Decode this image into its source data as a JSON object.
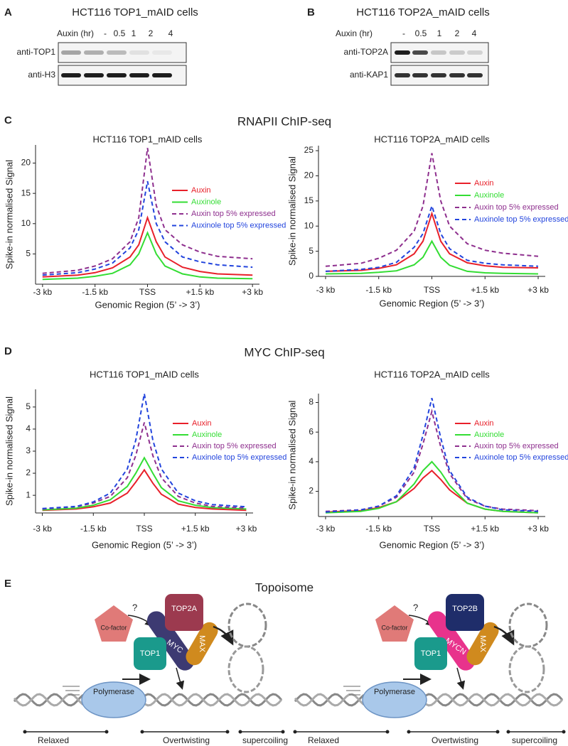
{
  "panels": {
    "A": {
      "label": "A",
      "title": "HCT116 TOP1_mAID cells",
      "treatment": "Auxin (hr)",
      "lanes": [
        "-",
        "0.5",
        "1",
        "2",
        "4"
      ],
      "antibodies": [
        "anti-TOP1",
        "anti-H3"
      ]
    },
    "B": {
      "label": "B",
      "title": "HCT116 TOP2A_mAID cells",
      "treatment": "Auxin (hr)",
      "lanes": [
        "-",
        "0.5",
        "1",
        "2",
        "4"
      ],
      "antibodies": [
        "anti-TOP2A",
        "anti-KAP1"
      ]
    },
    "C": {
      "label": "C",
      "title": "RNAPII ChIP-seq"
    },
    "D": {
      "label": "D",
      "title": "MYC ChIP-seq"
    },
    "E": {
      "label": "E",
      "title": "Topoisome",
      "left": {
        "cofactor": "Co-factor",
        "question": "?",
        "top2": "TOP2A",
        "myc": "MYC",
        "max": "MAX",
        "top1": "TOP1",
        "polymerase": "Polymerase",
        "regions": [
          "Relaxed",
          "Overtwisting",
          "supercoiling"
        ]
      },
      "right": {
        "cofactor": "Co-factor",
        "question": "?",
        "top2": "TOP2B",
        "myc": "MYCN",
        "max": "MAX",
        "top1": "TOP1",
        "polymerase": "Polymerase",
        "regions": [
          "Relaxed",
          "Overtwisting",
          "supercoiling"
        ]
      }
    }
  },
  "chart_data": [
    {
      "type": "line",
      "title": "HCT116 TOP1_mAID cells",
      "x_label": "Genomic Region (5’ -> 3’)",
      "y_label": "Spike-in normalised Signal",
      "x": [
        -3,
        -2,
        -1.5,
        -1,
        -0.5,
        -0.25,
        0,
        0.25,
        0.5,
        1,
        1.5,
        2,
        3
      ],
      "xlim": [
        -3.2,
        3.2
      ],
      "xticks": [
        {
          "value": -3,
          "label": "-3 kb"
        },
        {
          "value": -1.5,
          "label": "-1.5 kb"
        },
        {
          "value": 0,
          "label": "TSS"
        },
        {
          "value": 1.5,
          "label": "+1.5 kb"
        },
        {
          "value": 3,
          "label": "+3 kb"
        }
      ],
      "ylim": [
        0,
        23
      ],
      "yticks": [
        5,
        10,
        15,
        20
      ],
      "grid": false,
      "legend": "right",
      "series": [
        {
          "name": "Auxin",
          "color": "#e8202a",
          "linestyle": "solid",
          "values": [
            1.2,
            1.5,
            1.9,
            2.7,
            4.5,
            6.5,
            11,
            7,
            4.5,
            2.8,
            2.1,
            1.7,
            1.5
          ]
        },
        {
          "name": "Auxinole",
          "color": "#33dd33",
          "linestyle": "solid",
          "values": [
            0.8,
            1.0,
            1.3,
            1.8,
            3.2,
            5,
            8.5,
            5,
            3,
            1.7,
            1.2,
            1.0,
            0.9
          ]
        },
        {
          "name": "Auxin top 5% expressed",
          "color": "#8e2f8e",
          "linestyle": "dashed",
          "values": [
            1.8,
            2.3,
            3,
            4.2,
            7,
            11,
            22.5,
            13,
            9,
            6.5,
            5.3,
            4.6,
            4.2
          ]
        },
        {
          "name": "Auxinole top 5% expressed",
          "color": "#2244dd",
          "linestyle": "dashed",
          "values": [
            1.5,
            1.9,
            2.5,
            3.5,
            6,
            9,
            17,
            10,
            7,
            4.5,
            3.7,
            3.2,
            2.8
          ]
        }
      ]
    },
    {
      "type": "line",
      "title": "HCT116 TOP2A_mAID cells",
      "x_label": "Genomic Region (5’ -> 3’)",
      "y_label": "Spike-in normalised Signal",
      "x": [
        -3,
        -2,
        -1.5,
        -1,
        -0.5,
        -0.25,
        0,
        0.25,
        0.5,
        1,
        1.5,
        2,
        3
      ],
      "xlim": [
        -3.2,
        3.2
      ],
      "xticks": [
        {
          "value": -3,
          "label": "-3 kb"
        },
        {
          "value": -1.5,
          "label": "-1.5 kb"
        },
        {
          "value": 0,
          "label": "TSS"
        },
        {
          "value": 1.5,
          "label": "+1.5 kb"
        },
        {
          "value": 3,
          "label": "+3 kb"
        }
      ],
      "ylim": [
        0,
        26
      ],
      "yticks": [
        0,
        5,
        10,
        15,
        20,
        25
      ],
      "grid": false,
      "legend": "right",
      "series": [
        {
          "name": "Auxin",
          "color": "#e8202a",
          "linestyle": "solid",
          "values": [
            1,
            1.2,
            1.6,
            2.3,
            4.5,
            7,
            12.5,
            7,
            4.5,
            2.7,
            2.1,
            1.8,
            1.7
          ]
        },
        {
          "name": "Auxinole",
          "color": "#33dd33",
          "linestyle": "solid",
          "values": [
            0.5,
            0.6,
            0.8,
            1.1,
            2.3,
            3.8,
            7,
            3.8,
            2.2,
            1.0,
            0.7,
            0.6,
            0.5
          ]
        },
        {
          "name": "Auxin top 5% expressed",
          "color": "#8e2f8e",
          "linestyle": "dashed",
          "values": [
            2,
            2.6,
            3.6,
            5.2,
            9,
            14,
            24.5,
            15,
            10,
            6.5,
            5.2,
            4.6,
            4
          ]
        },
        {
          "name": "Auxinole top 5% expressed",
          "color": "#2244dd",
          "linestyle": "dashed",
          "values": [
            1,
            1.4,
            1.8,
            2.8,
            5.8,
            8.5,
            14,
            8.5,
            5.5,
            3.2,
            2.6,
            2.3,
            2
          ]
        }
      ]
    },
    {
      "type": "line",
      "title": "HCT116 TOP1_mAID cells",
      "x_label": "Genomic Region (5’ -> 3’)",
      "y_label": "Spike-in normalised Signal",
      "x": [
        -3,
        -2,
        -1.5,
        -1,
        -0.5,
        -0.25,
        0,
        0.25,
        0.5,
        1,
        1.5,
        2,
        3
      ],
      "xlim": [
        -3.2,
        3.2
      ],
      "xticks": [
        {
          "value": -3,
          "label": "-3 kb"
        },
        {
          "value": -1.5,
          "label": "-1.5 kb"
        },
        {
          "value": 0,
          "label": "TSS"
        },
        {
          "value": 1.5,
          "label": "+1.5 kb"
        },
        {
          "value": 3,
          "label": "+3 kb"
        }
      ],
      "ylim": [
        0.2,
        5.8
      ],
      "yticks": [
        1,
        2,
        3,
        4,
        5
      ],
      "grid": false,
      "legend": "right",
      "series": [
        {
          "name": "Auxin",
          "color": "#e8202a",
          "linestyle": "solid",
          "values": [
            0.32,
            0.38,
            0.48,
            0.65,
            1.1,
            1.6,
            2.15,
            1.55,
            1.05,
            0.6,
            0.45,
            0.38,
            0.32
          ]
        },
        {
          "name": "Auxinole",
          "color": "#33dd33",
          "linestyle": "solid",
          "values": [
            0.34,
            0.42,
            0.55,
            0.8,
            1.4,
            2.0,
            2.7,
            2.0,
            1.35,
            0.75,
            0.55,
            0.44,
            0.38
          ]
        },
        {
          "name": "Auxin top 5% expressed",
          "color": "#8e2f8e",
          "linestyle": "dashed",
          "values": [
            0.38,
            0.48,
            0.65,
            0.95,
            1.8,
            2.8,
            4.3,
            2.8,
            1.8,
            0.95,
            0.65,
            0.5,
            0.42
          ]
        },
        {
          "name": "Auxinole top 5% expressed",
          "color": "#2244dd",
          "linestyle": "dashed",
          "values": [
            0.4,
            0.5,
            0.7,
            1.1,
            2.2,
            3.5,
            5.6,
            3.5,
            2.2,
            1.1,
            0.75,
            0.58,
            0.48
          ]
        }
      ]
    },
    {
      "type": "line",
      "title": "HCT116 TOP2A_mAID cells",
      "x_label": "Genomic Region (5’ -> 3’)",
      "y_label": "Spike-in normalised Signal",
      "x": [
        -3,
        -2,
        -1.5,
        -1,
        -0.5,
        -0.25,
        0,
        0.25,
        0.5,
        1,
        1.5,
        2,
        3
      ],
      "xlim": [
        -3.2,
        3.2
      ],
      "xticks": [
        {
          "value": -3,
          "label": "-3 kb"
        },
        {
          "value": -1.5,
          "label": "-1.5 kb"
        },
        {
          "value": 0,
          "label": "TSS"
        },
        {
          "value": 1.5,
          "label": "+1.5 kb"
        },
        {
          "value": 3,
          "label": "+3 kb"
        }
      ],
      "ylim": [
        0.3,
        8.6
      ],
      "yticks": [
        2,
        4,
        6,
        8
      ],
      "grid": false,
      "legend": "right",
      "series": [
        {
          "name": "Auxin",
          "color": "#e8202a",
          "linestyle": "solid",
          "values": [
            0.6,
            0.7,
            0.9,
            1.3,
            2.2,
            2.9,
            3.4,
            2.8,
            2.1,
            1.2,
            0.8,
            0.65,
            0.55
          ]
        },
        {
          "name": "Auxinole",
          "color": "#33dd33",
          "linestyle": "solid",
          "values": [
            0.55,
            0.65,
            0.85,
            1.3,
            2.5,
            3.4,
            4.0,
            3.3,
            2.4,
            1.2,
            0.8,
            0.65,
            0.55
          ]
        },
        {
          "name": "Auxin top 5% expressed",
          "color": "#8e2f8e",
          "linestyle": "dashed",
          "values": [
            0.65,
            0.75,
            1.0,
            1.6,
            3.3,
            5.2,
            7.4,
            5,
            3.2,
            1.5,
            1.0,
            0.8,
            0.7
          ]
        },
        {
          "name": "Auxinole top 5% expressed",
          "color": "#2244dd",
          "linestyle": "dashed",
          "values": [
            0.6,
            0.75,
            1.0,
            1.7,
            3.6,
            5.8,
            8.3,
            5.6,
            3.4,
            1.6,
            1.0,
            0.75,
            0.65
          ]
        }
      ]
    }
  ]
}
